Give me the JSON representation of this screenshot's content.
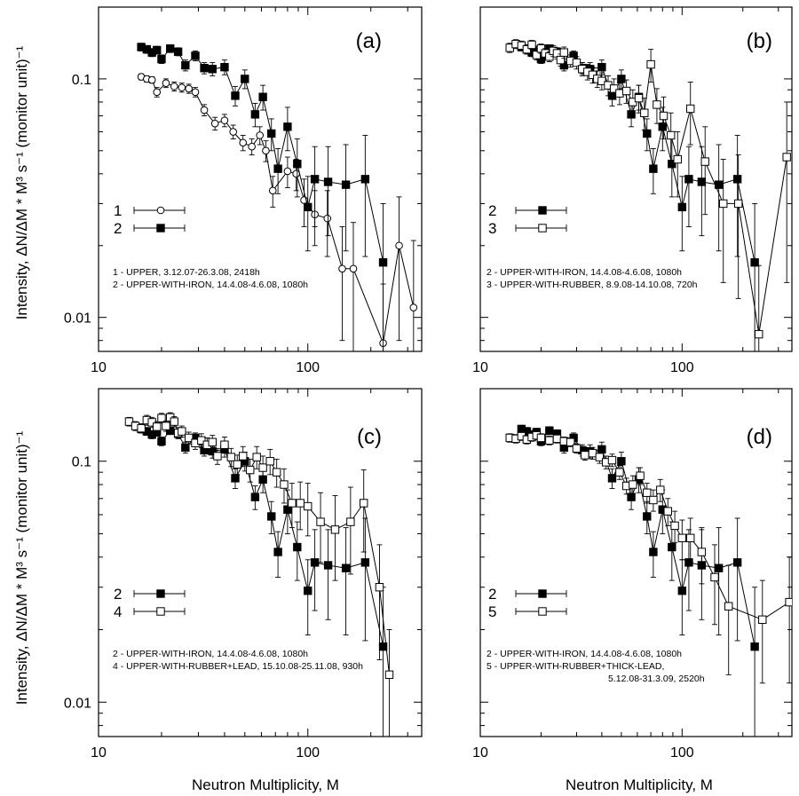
{
  "figure": {
    "ylabel": "Intensity, ΔN/ΔM * M³ s⁻¹ (monitor unit)⁻¹",
    "xlabel": "Neutron Multiplicity,  M"
  },
  "chart_data": [
    {
      "type": "scatter",
      "panel": "(a)",
      "xscale": "log",
      "yscale": "log",
      "xlim": [
        10,
        350
      ],
      "ylim": [
        0.0072,
        0.2
      ],
      "xticks": [
        "10",
        "100"
      ],
      "yticks": [
        "0.01",
        "0.1"
      ],
      "legend": [
        "1",
        "2"
      ],
      "notes": [
        "1 - UPPER, 3.12.07-26.3.08, 2418h",
        "2 - UPPER-WITH-IRON, 14.4.08-4.6.08, 1080h"
      ],
      "series": [
        {
          "name": "1",
          "marker": "open-circle",
          "x": [
            16,
            17,
            18,
            19,
            21,
            23,
            25,
            27,
            29,
            32,
            36,
            40,
            44,
            49,
            54,
            59,
            63,
            68,
            80,
            88,
            96,
            108,
            124,
            146,
            165,
            229,
            273,
            320
          ],
          "y": [
            0.102,
            0.1,
            0.099,
            0.088,
            0.096,
            0.093,
            0.092,
            0.091,
            0.088,
            0.074,
            0.065,
            0.067,
            0.06,
            0.054,
            0.052,
            0.058,
            0.05,
            0.034,
            0.041,
            0.04,
            0.031,
            0.027,
            0.026,
            0.016,
            0.016,
            0.0078,
            0.02,
            0.011
          ],
          "err": [
            0.003,
            0.003,
            0.003,
            0.004,
            0.004,
            0.004,
            0.004,
            0.004,
            0.004,
            0.004,
            0.004,
            0.004,
            0.004,
            0.004,
            0.004,
            0.005,
            0.005,
            0.005,
            0.006,
            0.006,
            0.007,
            0.007,
            0.008,
            0.008,
            0.009,
            0.006,
            0.012,
            0.01
          ]
        },
        {
          "name": "2",
          "marker": "filled-square",
          "x": [
            16,
            17,
            18,
            19,
            20,
            22,
            24,
            26,
            29,
            32,
            35,
            40,
            45,
            50,
            56,
            61,
            67,
            72,
            80,
            89,
            100,
            108,
            125,
            152,
            188,
            229
          ],
          "y": [
            0.136,
            0.133,
            0.129,
            0.132,
            0.121,
            0.134,
            0.13,
            0.114,
            0.125,
            0.111,
            0.11,
            0.112,
            0.085,
            0.1,
            0.071,
            0.084,
            0.059,
            0.042,
            0.063,
            0.044,
            0.029,
            0.038,
            0.037,
            0.036,
            0.038,
            0.017
          ],
          "err": [
            0.005,
            0.005,
            0.005,
            0.005,
            0.005,
            0.005,
            0.005,
            0.006,
            0.006,
            0.006,
            0.007,
            0.008,
            0.008,
            0.009,
            0.008,
            0.01,
            0.009,
            0.009,
            0.013,
            0.012,
            0.01,
            0.014,
            0.015,
            0.017,
            0.02,
            0.013
          ]
        }
      ]
    },
    {
      "type": "scatter",
      "panel": "(b)",
      "xscale": "log",
      "yscale": "log",
      "xlim": [
        10,
        350
      ],
      "ylim": [
        0.0072,
        0.2
      ],
      "xticks": [
        "10",
        "100"
      ],
      "yticks": [
        "0.01",
        "0.1"
      ],
      "legend": [
        "2",
        "3"
      ],
      "notes": [
        "2 - UPPER-WITH-IRON, 14.4.08-4.6.08, 1080h",
        "3 - UPPER-WITH-RUBBER, 8.9.08-14.10.08, 720h"
      ],
      "series": [
        {
          "name": "2",
          "marker": "filled-square",
          "x": [
            16,
            17,
            18,
            19,
            20,
            22,
            24,
            26,
            29,
            32,
            35,
            40,
            45,
            50,
            56,
            61,
            67,
            72,
            80,
            89,
            100,
            108,
            125,
            152,
            188,
            229
          ],
          "y": [
            0.136,
            0.133,
            0.129,
            0.132,
            0.121,
            0.134,
            0.13,
            0.114,
            0.125,
            0.111,
            0.11,
            0.112,
            0.085,
            0.1,
            0.071,
            0.084,
            0.059,
            0.042,
            0.063,
            0.044,
            0.029,
            0.038,
            0.037,
            0.036,
            0.038,
            0.017
          ],
          "err": [
            0.005,
            0.005,
            0.005,
            0.005,
            0.005,
            0.005,
            0.005,
            0.006,
            0.006,
            0.006,
            0.007,
            0.008,
            0.008,
            0.009,
            0.008,
            0.01,
            0.009,
            0.009,
            0.013,
            0.012,
            0.01,
            0.014,
            0.015,
            0.017,
            0.02,
            0.013
          ]
        },
        {
          "name": "3",
          "marker": "open-square",
          "x": [
            14,
            15,
            16,
            17,
            18,
            19,
            20,
            21,
            22,
            23,
            24,
            25,
            26,
            28,
            30,
            32,
            34,
            36,
            38,
            40,
            43,
            46,
            49,
            53,
            57,
            61,
            65,
            70,
            75,
            81,
            88,
            95,
            110,
            130,
            160,
            190,
            240,
            330
          ],
          "y": [
            0.135,
            0.14,
            0.138,
            0.133,
            0.139,
            0.126,
            0.134,
            0.128,
            0.124,
            0.131,
            0.128,
            0.12,
            0.129,
            0.119,
            0.117,
            0.11,
            0.107,
            0.104,
            0.1,
            0.098,
            0.094,
            0.091,
            0.087,
            0.089,
            0.08,
            0.083,
            0.072,
            0.115,
            0.078,
            0.07,
            0.058,
            0.046,
            0.075,
            0.045,
            0.03,
            0.03,
            0.0085,
            0.047
          ],
          "err": [
            0.006,
            0.006,
            0.006,
            0.006,
            0.006,
            0.006,
            0.006,
            0.006,
            0.006,
            0.007,
            0.007,
            0.007,
            0.007,
            0.007,
            0.007,
            0.007,
            0.008,
            0.008,
            0.008,
            0.008,
            0.009,
            0.009,
            0.009,
            0.01,
            0.01,
            0.011,
            0.011,
            0.018,
            0.013,
            0.014,
            0.014,
            0.014,
            0.022,
            0.018,
            0.016,
            0.018,
            0.008,
            0.033
          ]
        }
      ]
    },
    {
      "type": "scatter",
      "panel": "(c)",
      "xscale": "log",
      "yscale": "log",
      "xlim": [
        10,
        350
      ],
      "ylim": [
        0.0072,
        0.2
      ],
      "xticks": [
        "10",
        "100"
      ],
      "yticks": [
        "0.01",
        "0.1"
      ],
      "legend": [
        "2",
        "4"
      ],
      "notes": [
        "2 - UPPER-WITH-IRON, 14.4.08-4.6.08, 1080h",
        "4 - UPPER-WITH-RUBBER+LEAD, 15.10.08-25.11.08, 930h"
      ],
      "series": [
        {
          "name": "2",
          "marker": "filled-square",
          "x": [
            16,
            17,
            18,
            19,
            20,
            22,
            24,
            26,
            29,
            32,
            35,
            40,
            45,
            50,
            56,
            61,
            67,
            72,
            80,
            89,
            100,
            108,
            125,
            152,
            188,
            229
          ],
          "y": [
            0.136,
            0.133,
            0.129,
            0.132,
            0.121,
            0.134,
            0.13,
            0.114,
            0.125,
            0.111,
            0.11,
            0.112,
            0.085,
            0.1,
            0.071,
            0.084,
            0.059,
            0.042,
            0.063,
            0.044,
            0.029,
            0.038,
            0.037,
            0.036,
            0.038,
            0.017
          ],
          "err": [
            0.005,
            0.005,
            0.005,
            0.005,
            0.005,
            0.005,
            0.005,
            0.006,
            0.006,
            0.006,
            0.007,
            0.008,
            0.008,
            0.009,
            0.008,
            0.01,
            0.009,
            0.009,
            0.013,
            0.012,
            0.01,
            0.014,
            0.015,
            0.017,
            0.02,
            0.013
          ]
        },
        {
          "name": "4",
          "marker": "open-square",
          "x": [
            14,
            15,
            16,
            17,
            18,
            19,
            20,
            21,
            22,
            23,
            24,
            25,
            27,
            29,
            31,
            33,
            35,
            37,
            40,
            43,
            46,
            49,
            53,
            57,
            61,
            66,
            71,
            77,
            84,
            92,
            100,
            115,
            135,
            160,
            185,
            220,
            245
          ],
          "y": [
            0.146,
            0.14,
            0.137,
            0.148,
            0.145,
            0.139,
            0.151,
            0.14,
            0.152,
            0.146,
            0.131,
            0.133,
            0.125,
            0.119,
            0.122,
            0.117,
            0.12,
            0.105,
            0.117,
            0.104,
            0.097,
            0.105,
            0.092,
            0.104,
            0.094,
            0.1,
            0.09,
            0.08,
            0.067,
            0.067,
            0.065,
            0.056,
            0.052,
            0.056,
            0.067,
            0.03,
            0.013
          ],
          "err": [
            0.006,
            0.006,
            0.006,
            0.007,
            0.007,
            0.007,
            0.007,
            0.007,
            0.007,
            0.007,
            0.007,
            0.007,
            0.007,
            0.007,
            0.008,
            0.008,
            0.008,
            0.008,
            0.009,
            0.009,
            0.009,
            0.01,
            0.01,
            0.011,
            0.011,
            0.012,
            0.012,
            0.013,
            0.014,
            0.015,
            0.016,
            0.018,
            0.02,
            0.022,
            0.025,
            0.015,
            0.007
          ]
        }
      ]
    },
    {
      "type": "scatter",
      "panel": "(d)",
      "xscale": "log",
      "yscale": "log",
      "xlim": [
        10,
        350
      ],
      "ylim": [
        0.0072,
        0.2
      ],
      "xticks": [
        "10",
        "100"
      ],
      "yticks": [
        "0.01",
        "0.1"
      ],
      "legend": [
        "2",
        "5"
      ],
      "notes": [
        "2 - UPPER-WITH-IRON, 14.4.08-4.6.08, 1080h",
        "5 - UPPER-WITH-RUBBER+THICK-LEAD,",
        "5.12.08-31.3.09, 2520h"
      ],
      "series": [
        {
          "name": "2",
          "marker": "filled-square",
          "x": [
            16,
            17,
            18,
            19,
            20,
            22,
            24,
            26,
            29,
            32,
            35,
            40,
            45,
            50,
            56,
            61,
            67,
            72,
            80,
            89,
            100,
            108,
            125,
            152,
            188,
            229
          ],
          "y": [
            0.136,
            0.133,
            0.129,
            0.132,
            0.121,
            0.134,
            0.13,
            0.114,
            0.125,
            0.111,
            0.11,
            0.112,
            0.085,
            0.1,
            0.071,
            0.084,
            0.059,
            0.042,
            0.063,
            0.044,
            0.029,
            0.038,
            0.037,
            0.036,
            0.038,
            0.017
          ],
          "err": [
            0.005,
            0.005,
            0.005,
            0.005,
            0.005,
            0.005,
            0.005,
            0.006,
            0.006,
            0.006,
            0.007,
            0.008,
            0.008,
            0.009,
            0.008,
            0.01,
            0.009,
            0.009,
            0.013,
            0.012,
            0.01,
            0.014,
            0.015,
            0.017,
            0.02,
            0.013
          ]
        },
        {
          "name": "5",
          "marker": "open-square",
          "x": [
            14,
            15,
            16,
            17,
            18,
            19,
            20,
            22,
            24,
            26,
            28,
            30,
            33,
            36,
            39,
            42,
            45,
            49,
            53,
            57,
            62,
            67,
            72,
            78,
            85,
            92,
            100,
            110,
            125,
            145,
            170,
            250,
            340
          ],
          "y": [
            0.125,
            0.124,
            0.127,
            0.123,
            0.126,
            0.128,
            0.125,
            0.122,
            0.124,
            0.121,
            0.12,
            0.113,
            0.106,
            0.108,
            0.104,
            0.099,
            0.101,
            0.09,
            0.079,
            0.08,
            0.087,
            0.074,
            0.069,
            0.076,
            0.062,
            0.054,
            0.048,
            0.048,
            0.042,
            0.033,
            0.025,
            0.022,
            0.026
          ],
          "err": [
            0.005,
            0.005,
            0.005,
            0.005,
            0.005,
            0.005,
            0.005,
            0.005,
            0.005,
            0.005,
            0.005,
            0.005,
            0.005,
            0.006,
            0.006,
            0.006,
            0.006,
            0.006,
            0.006,
            0.007,
            0.007,
            0.007,
            0.007,
            0.008,
            0.008,
            0.008,
            0.009,
            0.01,
            0.011,
            0.012,
            0.012,
            0.01,
            0.014
          ]
        }
      ]
    }
  ]
}
